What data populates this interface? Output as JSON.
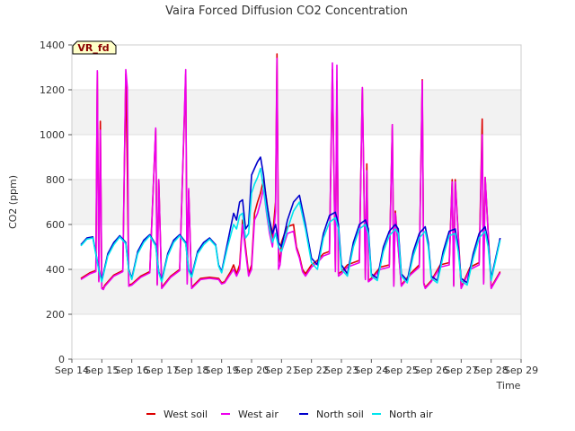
{
  "chart_data": {
    "type": "line",
    "title": "Vaira Forced Diffusion CO2 Concentration",
    "xlabel": "Time",
    "ylabel": "CO2 (ppm)",
    "tag": "VR_fd",
    "ylim": [
      0,
      1400
    ],
    "yticks": [
      0,
      200,
      400,
      600,
      800,
      1000,
      1200,
      1400
    ],
    "xlim": [
      14,
      29
    ],
    "xticks": [
      {
        "v": 14,
        "label": "Sep 14"
      },
      {
        "v": 15,
        "label": "Sep 15"
      },
      {
        "v": 16,
        "label": "Sep 16"
      },
      {
        "v": 17,
        "label": "Sep 17"
      },
      {
        "v": 18,
        "label": "Sep 18"
      },
      {
        "v": 19,
        "label": "Sep 19"
      },
      {
        "v": 20,
        "label": "Sep 20"
      },
      {
        "v": 21,
        "label": "Sep 21"
      },
      {
        "v": 22,
        "label": "Sep 22"
      },
      {
        "v": 23,
        "label": "Sep 23"
      },
      {
        "v": 24,
        "label": "Sep 24"
      },
      {
        "v": 25,
        "label": "Sep 25"
      },
      {
        "v": 26,
        "label": "Sep 26"
      },
      {
        "v": 27,
        "label": "Sep 27"
      },
      {
        "v": 28,
        "label": "Sep 28"
      },
      {
        "v": 29,
        "label": "Sep 29"
      }
    ],
    "grid": true,
    "legend_position": "bottom",
    "series": [
      {
        "name": "West soil",
        "color": "#dd0000",
        "x": [
          14.3,
          14.6,
          14.8,
          14.85,
          14.9,
          14.95,
          15.0,
          15.05,
          15.1,
          15.4,
          15.7,
          15.8,
          15.85,
          15.9,
          16.0,
          16.3,
          16.6,
          16.8,
          16.85,
          16.9,
          17.0,
          17.3,
          17.6,
          17.8,
          17.85,
          17.9,
          18.0,
          18.3,
          18.6,
          18.9,
          19.0,
          19.1,
          19.3,
          19.4,
          19.5,
          19.6,
          19.7,
          19.8,
          19.9,
          20.0,
          20.1,
          20.2,
          20.3,
          20.4,
          20.5,
          20.6,
          20.7,
          20.8,
          20.85,
          20.9,
          20.95,
          21.0,
          21.1,
          21.2,
          21.4,
          21.5,
          21.6,
          21.7,
          21.8,
          22.0,
          22.2,
          22.4,
          22.6,
          22.7,
          22.8,
          22.85,
          22.9,
          23.0,
          23.2,
          23.4,
          23.6,
          23.7,
          23.8,
          23.85,
          23.9,
          24.0,
          24.3,
          24.6,
          24.7,
          24.75,
          24.8,
          25.0,
          25.3,
          25.6,
          25.7,
          25.75,
          25.8,
          26.0,
          26.3,
          26.6,
          26.7,
          26.75,
          26.8,
          27.0,
          27.3,
          27.6,
          27.7,
          27.75,
          27.8,
          28.0,
          28.3
        ],
        "y": [
          360,
          385,
          395,
          1280,
          350,
          1060,
          320,
          315,
          330,
          375,
          395,
          1270,
          850,
          330,
          335,
          370,
          390,
          1025,
          335,
          800,
          320,
          370,
          400,
          1270,
          340,
          750,
          320,
          360,
          365,
          360,
          340,
          345,
          390,
          420,
          380,
          420,
          620,
          500,
          380,
          420,
          650,
          700,
          740,
          800,
          710,
          600,
          540,
          700,
          1360,
          480,
          430,
          520,
          560,
          590,
          600,
          500,
          460,
          400,
          380,
          420,
          440,
          470,
          480,
          1290,
          400,
          1240,
          380,
          390,
          420,
          430,
          440,
          1210,
          360,
          870,
          350,
          360,
          410,
          420,
          1045,
          330,
          660,
          330,
          380,
          420,
          1245,
          340,
          320,
          350,
          420,
          430,
          800,
          330,
          800,
          320,
          410,
          430,
          1070,
          340,
          810,
          320,
          390
        ]
      },
      {
        "name": "West air",
        "color": "#ee00ee",
        "x": [
          14.3,
          14.6,
          14.8,
          14.85,
          14.9,
          14.95,
          15.0,
          15.05,
          15.1,
          15.4,
          15.7,
          15.8,
          15.85,
          15.9,
          16.0,
          16.3,
          16.6,
          16.8,
          16.85,
          16.9,
          17.0,
          17.3,
          17.6,
          17.8,
          17.85,
          17.9,
          18.0,
          18.3,
          18.6,
          18.9,
          19.0,
          19.1,
          19.3,
          19.4,
          19.5,
          19.6,
          19.7,
          19.8,
          19.9,
          20.0,
          20.1,
          20.2,
          20.3,
          20.4,
          20.5,
          20.6,
          20.7,
          20.8,
          20.85,
          20.9,
          20.95,
          21.0,
          21.1,
          21.2,
          21.4,
          21.5,
          21.6,
          21.7,
          21.8,
          22.0,
          22.2,
          22.4,
          22.6,
          22.7,
          22.8,
          22.85,
          22.9,
          23.0,
          23.2,
          23.4,
          23.6,
          23.7,
          23.8,
          23.85,
          23.9,
          24.0,
          24.3,
          24.6,
          24.7,
          24.75,
          24.8,
          25.0,
          25.3,
          25.6,
          25.7,
          25.75,
          25.8,
          26.0,
          26.3,
          26.6,
          26.7,
          26.75,
          26.8,
          27.0,
          27.3,
          27.6,
          27.7,
          27.75,
          27.8,
          28.0,
          28.3
        ],
        "y": [
          355,
          380,
          390,
          1285,
          345,
          1020,
          315,
          310,
          325,
          370,
          390,
          1290,
          1210,
          325,
          330,
          365,
          385,
          1030,
          330,
          800,
          315,
          365,
          395,
          1290,
          335,
          760,
          315,
          355,
          360,
          355,
          335,
          340,
          380,
          400,
          370,
          400,
          600,
          480,
          370,
          400,
          620,
          650,
          700,
          760,
          650,
          560,
          500,
          660,
          1340,
          400,
          420,
          480,
          520,
          560,
          570,
          490,
          450,
          390,
          370,
          410,
          430,
          460,
          470,
          1320,
          390,
          1310,
          370,
          380,
          410,
          420,
          430,
          1210,
          355,
          840,
          345,
          355,
          400,
          410,
          1045,
          325,
          650,
          325,
          375,
          410,
          1240,
          335,
          315,
          345,
          410,
          420,
          790,
          325,
          790,
          315,
          400,
          420,
          1000,
          335,
          810,
          315,
          385
        ]
      },
      {
        "name": "North soil",
        "color": "#0000cc",
        "x": [
          14.3,
          14.5,
          14.7,
          14.9,
          15.0,
          15.2,
          15.4,
          15.6,
          15.8,
          15.9,
          16.0,
          16.2,
          16.4,
          16.6,
          16.8,
          16.9,
          17.0,
          17.2,
          17.4,
          17.6,
          17.8,
          17.9,
          18.0,
          18.2,
          18.4,
          18.6,
          18.8,
          18.9,
          19.0,
          19.2,
          19.4,
          19.5,
          19.6,
          19.7,
          19.8,
          19.9,
          20.0,
          20.1,
          20.2,
          20.3,
          20.4,
          20.5,
          20.6,
          20.7,
          20.8,
          20.9,
          21.0,
          21.2,
          21.4,
          21.6,
          21.8,
          22.0,
          22.2,
          22.4,
          22.6,
          22.8,
          22.9,
          23.0,
          23.2,
          23.4,
          23.6,
          23.8,
          23.9,
          24.0,
          24.2,
          24.4,
          24.6,
          24.8,
          24.9,
          25.0,
          25.2,
          25.4,
          25.6,
          25.8,
          25.9,
          26.0,
          26.2,
          26.4,
          26.6,
          26.8,
          26.9,
          27.0,
          27.2,
          27.4,
          27.6,
          27.8,
          27.9,
          28.0,
          28.3
        ],
        "y": [
          510,
          540,
          545,
          400,
          350,
          470,
          520,
          550,
          520,
          400,
          360,
          480,
          530,
          555,
          510,
          390,
          350,
          470,
          530,
          555,
          520,
          400,
          370,
          480,
          520,
          540,
          510,
          420,
          390,
          520,
          650,
          620,
          700,
          710,
          580,
          600,
          820,
          850,
          880,
          900,
          820,
          700,
          620,
          560,
          600,
          520,
          500,
          620,
          700,
          730,
          600,
          450,
          420,
          560,
          640,
          655,
          600,
          420,
          380,
          520,
          600,
          620,
          580,
          380,
          360,
          500,
          570,
          600,
          580,
          380,
          350,
          480,
          560,
          590,
          520,
          370,
          350,
          480,
          570,
          580,
          500,
          360,
          340,
          470,
          560,
          590,
          520,
          360,
          540
        ]
      },
      {
        "name": "North air",
        "color": "#00e5ee",
        "x": [
          14.3,
          14.5,
          14.7,
          14.9,
          15.0,
          15.2,
          15.4,
          15.6,
          15.8,
          15.9,
          16.0,
          16.2,
          16.4,
          16.6,
          16.8,
          16.9,
          17.0,
          17.2,
          17.4,
          17.6,
          17.8,
          17.9,
          18.0,
          18.2,
          18.4,
          18.6,
          18.8,
          18.9,
          19.0,
          19.2,
          19.4,
          19.5,
          19.6,
          19.7,
          19.8,
          19.9,
          20.0,
          20.1,
          20.2,
          20.3,
          20.4,
          20.5,
          20.6,
          20.7,
          20.8,
          20.9,
          21.0,
          21.2,
          21.4,
          21.6,
          21.8,
          22.0,
          22.2,
          22.4,
          22.6,
          22.8,
          22.9,
          23.0,
          23.2,
          23.4,
          23.6,
          23.8,
          23.9,
          24.0,
          24.2,
          24.4,
          24.6,
          24.8,
          24.9,
          25.0,
          25.2,
          25.4,
          25.6,
          25.8,
          25.9,
          26.0,
          26.2,
          26.4,
          26.6,
          26.8,
          26.9,
          27.0,
          27.2,
          27.4,
          27.6,
          27.8,
          27.9,
          28.0,
          28.3
        ],
        "y": [
          505,
          535,
          540,
          395,
          345,
          460,
          510,
          545,
          515,
          395,
          355,
          470,
          520,
          550,
          505,
          385,
          345,
          460,
          520,
          550,
          515,
          395,
          365,
          470,
          510,
          535,
          505,
          415,
          385,
          500,
          600,
          580,
          640,
          650,
          540,
          560,
          740,
          780,
          810,
          850,
          760,
          660,
          580,
          520,
          560,
          500,
          480,
          580,
          660,
          700,
          580,
          430,
          400,
          540,
          610,
          630,
          580,
          400,
          370,
          500,
          580,
          600,
          560,
          370,
          350,
          480,
          550,
          580,
          560,
          370,
          340,
          460,
          540,
          570,
          500,
          360,
          340,
          460,
          550,
          560,
          480,
          350,
          330,
          450,
          540,
          570,
          500,
          350,
          530
        ]
      }
    ]
  }
}
